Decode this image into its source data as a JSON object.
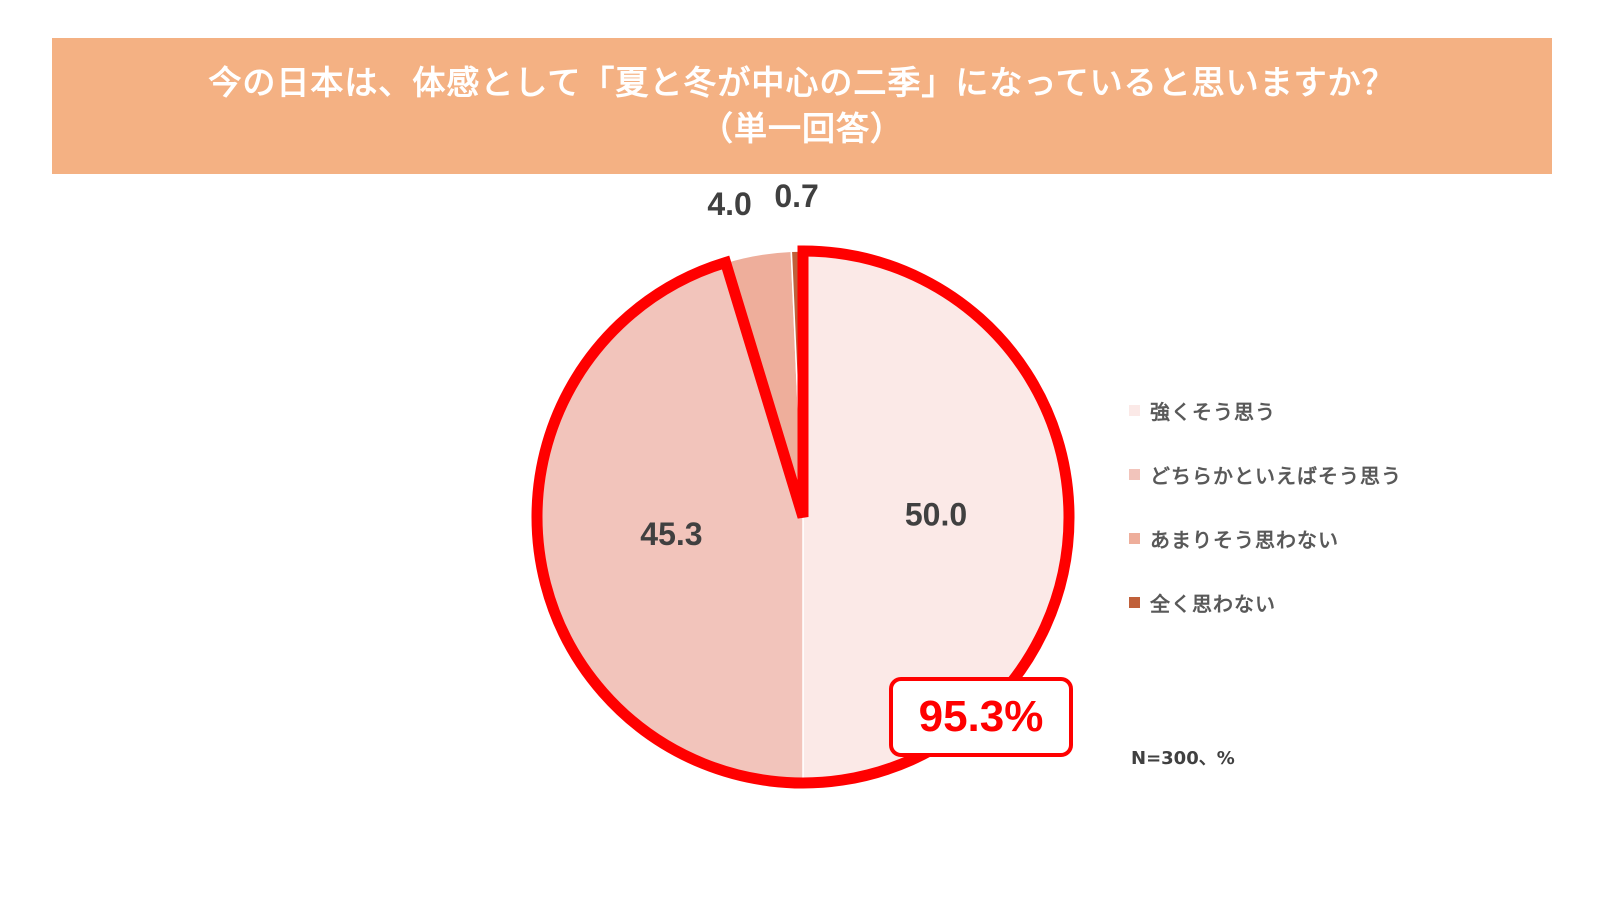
{
  "title_lines": [
    "今の日本は、体感として「夏と冬が中心の二季」になっていると思いますか？",
    "（単一回答）"
  ],
  "chart_data": {
    "type": "pie",
    "categories": [
      "強くそう思う",
      "どちらかといえばそう思う",
      "あまりそう思わない",
      "全く思わない"
    ],
    "values": [
      50.0,
      45.3,
      4.0,
      0.7
    ],
    "value_labels": [
      "50.0",
      "45.3",
      "4.0",
      "0.7"
    ],
    "colors": [
      "#fbe9e7",
      "#f2c4bb",
      "#eeae9b",
      "#c0603a"
    ],
    "start_angle_deg": 0,
    "direction": "clockwise",
    "legend_position": "right",
    "highlight": {
      "label": "95.3%",
      "categories": [
        "強くそう思う",
        "どちらかといえばそう思う"
      ],
      "color": "#ff0000"
    }
  },
  "note": "N=300、%"
}
